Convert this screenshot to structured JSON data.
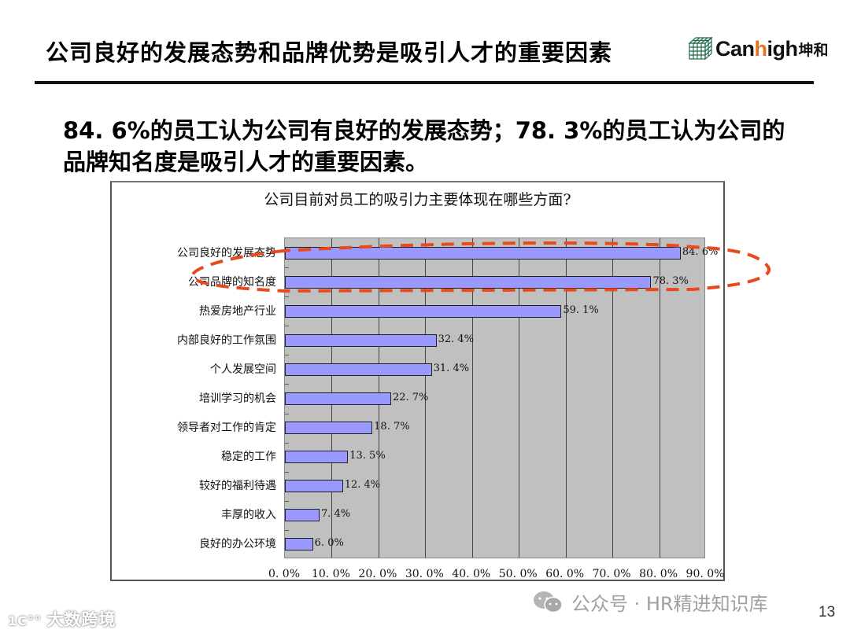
{
  "header": {
    "title": "公司良好的发展态势和品牌优势是吸引人才的重要因素",
    "logo": {
      "brand_prefix": "Can",
      "brand_highlight": "h",
      "brand_suffix": "igh",
      "brand_cn": "坤和",
      "accent_color": "#e8711f"
    }
  },
  "subtitle": "84. 6%的员工认为公司有良好的发展态势；78. 3%的员工认为公司的品牌知名度是吸引人才的重要因素。",
  "chart_data": {
    "type": "bar",
    "orientation": "horizontal",
    "title": "公司目前对员工的吸引力主要体现在哪些方面?",
    "xlabel": "",
    "ylabel": "",
    "xlim": [
      0,
      90
    ],
    "x_ticks": [
      "0. 0%",
      "10. 0%",
      "20. 0%",
      "30. 0%",
      "40. 0%",
      "50. 0%",
      "60. 0%",
      "70. 0%",
      "80. 0%",
      "90. 0%"
    ],
    "grid": true,
    "legend": null,
    "bar_color": "#9999ff",
    "plot_background": "#c0c0c0",
    "categories": [
      "公司良好的发展态势",
      "公司品牌的知名度",
      "热爱房地产行业",
      "内部良好的工作氛围",
      "个人发展空间",
      "培训学习的机会",
      "领导者对工作的肯定",
      "稳定的工作",
      "较好的福利待遇",
      "丰厚的收入",
      "良好的办公环境"
    ],
    "values": [
      84.6,
      78.3,
      59.1,
      32.4,
      31.4,
      22.7,
      18.7,
      13.5,
      12.4,
      7.4,
      6.0
    ],
    "value_labels": [
      "84. 6%",
      "78. 3%",
      "59. 1%",
      "32. 4%",
      "31. 4%",
      "22. 7%",
      "18. 7%",
      "13. 5%",
      "12. 4%",
      "7. 4%",
      "6. 0%"
    ],
    "annotations": [
      {
        "type": "dashed-ellipse",
        "color": "#e8491d",
        "highlights": [
          "公司良好的发展态势",
          "公司品牌的知名度"
        ]
      }
    ]
  },
  "footer": {
    "watermark": "公众号 · HR精进知识库",
    "page_number": "13",
    "corner_watermark": "大数跨境"
  }
}
